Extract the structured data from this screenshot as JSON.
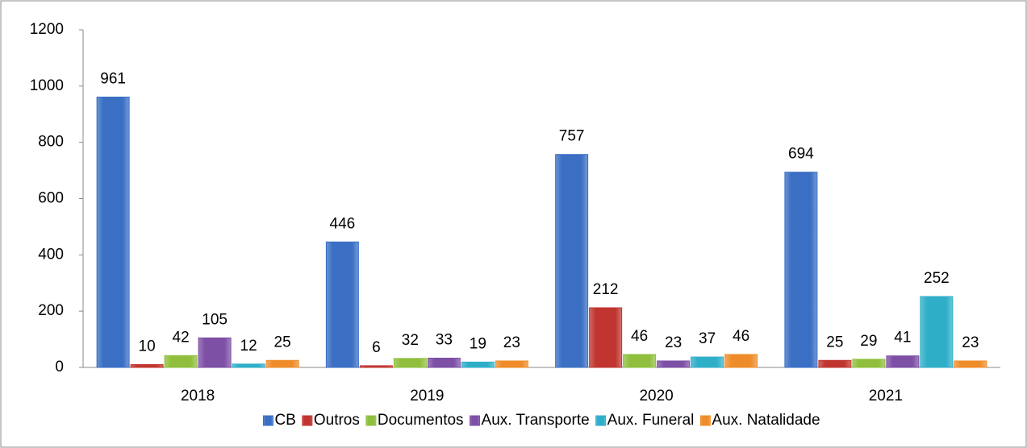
{
  "chart_data": {
    "type": "bar",
    "categories": [
      "2018",
      "2019",
      "2020",
      "2021"
    ],
    "series": [
      {
        "name": "CB",
        "color": "#3a6fc4",
        "values": [
          961,
          446,
          757,
          694
        ]
      },
      {
        "name": "Outros",
        "color": "#c0352f",
        "values": [
          10,
          6,
          212,
          25
        ]
      },
      {
        "name": "Documentos",
        "color": "#8fbf3c",
        "values": [
          42,
          32,
          46,
          29
        ]
      },
      {
        "name": "Aux. Transporte",
        "color": "#7d4fa5",
        "values": [
          105,
          33,
          23,
          41
        ]
      },
      {
        "name": "Aux. Funeral",
        "color": "#2faec8",
        "values": [
          12,
          19,
          37,
          252
        ]
      },
      {
        "name": "Aux. Natalidade",
        "color": "#ee8c2a",
        "values": [
          25,
          23,
          46,
          23
        ]
      }
    ],
    "ylim": [
      0,
      1200
    ],
    "yticks": [
      0,
      200,
      400,
      600,
      800,
      1000,
      1200
    ],
    "legend": "bottom"
  }
}
